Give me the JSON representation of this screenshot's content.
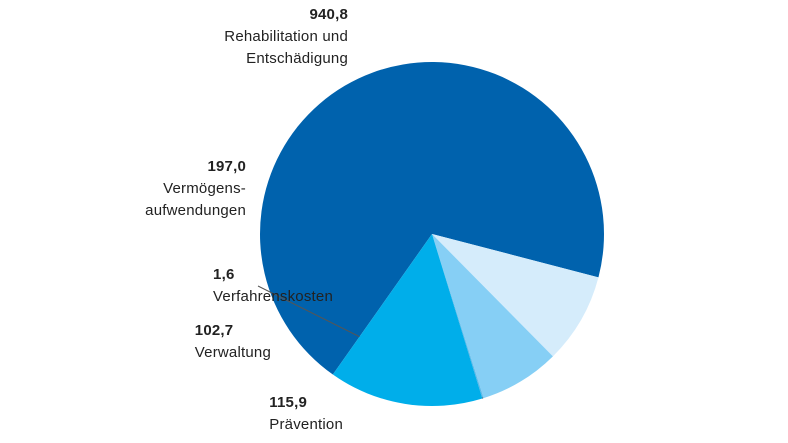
{
  "chart_data": {
    "type": "pie",
    "slices": [
      {
        "value_label": "940,8",
        "label_lines": [
          "Rehabilitation und",
          "Entschädigung"
        ],
        "value": 940.8,
        "color": "#0062ad"
      },
      {
        "value_label": "115,9",
        "label_lines": [
          "Prävention"
        ],
        "value": 115.9,
        "color": "#d5ecfb"
      },
      {
        "value_label": "102,7",
        "label_lines": [
          "Verwaltung"
        ],
        "value": 102.7,
        "color": "#86cff5"
      },
      {
        "value_label": "1,6",
        "label_lines": [
          "Verfahrenskosten"
        ],
        "value": 1.6,
        "color": "#5bb8e8"
      },
      {
        "value_label": "197,0",
        "label_lines": [
          "Vermögens-",
          "aufwendungen"
        ],
        "value": 197.0,
        "color": "#00aeea"
      }
    ]
  }
}
